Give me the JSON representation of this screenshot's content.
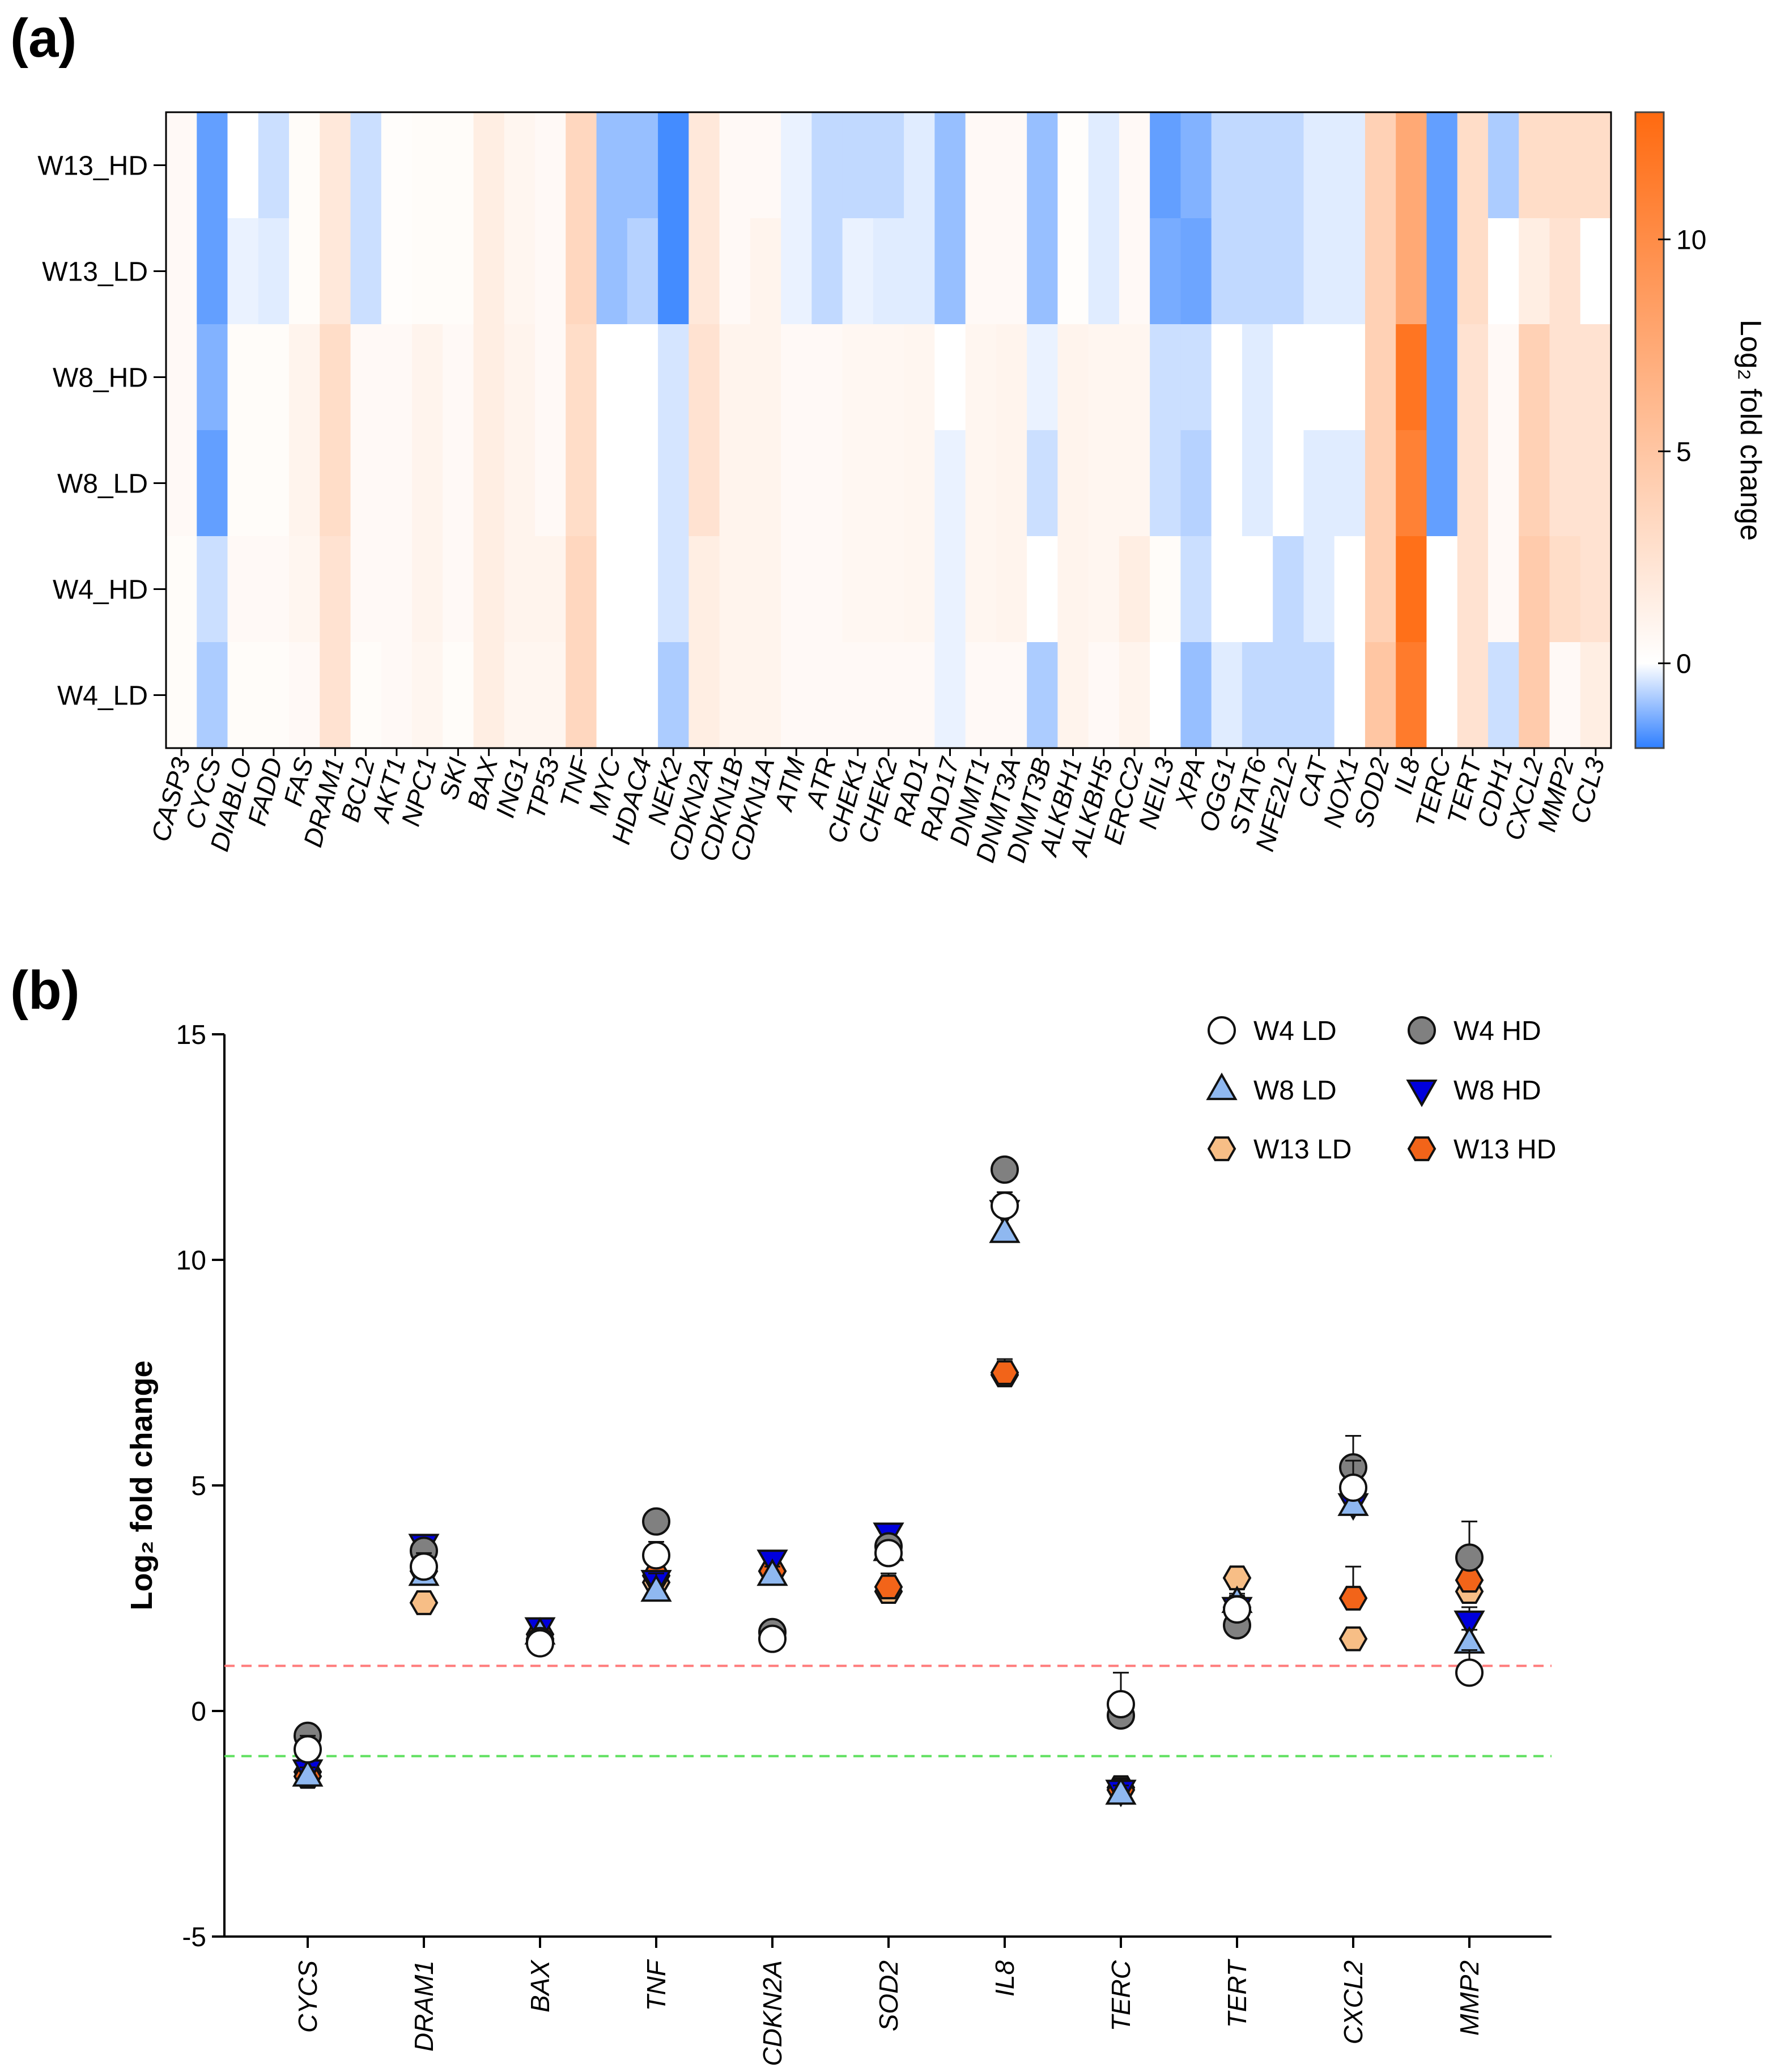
{
  "panel_a_label": "(a)",
  "panel_b_label": "(b)",
  "colors": {
    "low": "#2f7fff",
    "mid": "#ffffff",
    "high": "#ff6a10",
    "hd_grey": "#808080",
    "w8_ld": "#8fb8f0",
    "w8_hd": "#0000dd",
    "w13_ld": "#f7be86",
    "w13_hd": "#f26419",
    "upper_threshold": "#ff7b7b",
    "lower_threshold": "#5fe05f"
  },
  "chart_data": [
    {
      "type": "heatmap",
      "title": "",
      "rows": [
        "W13_HD",
        "W13_LD",
        "W8_HD",
        "W8_LD",
        "W4_HD",
        "W4_LD"
      ],
      "columns": [
        "CASP3",
        "CYCS",
        "DIABLO",
        "FADD",
        "FAS",
        "DRAM1",
        "BCL2",
        "AKT1",
        "NPC1",
        "SKI",
        "BAX",
        "ING1",
        "TP53",
        "TNF",
        "MYC",
        "HDAC4",
        "NEK2",
        "CDKN2A",
        "CDKN1B",
        "CDKN1A",
        "ATM",
        "ATR",
        "CHEK1",
        "CHEK2",
        "RAD1",
        "RAD17",
        "DNMT1",
        "DNMT3A",
        "DNMT3B",
        "ALKBH1",
        "ALKBH5",
        "ERCC2",
        "NEIL3",
        "XPA",
        "OGG1",
        "STAT6",
        "NFE2L2",
        "CAT",
        "NOX1",
        "SOD2",
        "IL8",
        "TERC",
        "TERT",
        "CDH1",
        "CXCL2",
        "MMP2",
        "CCL3"
      ],
      "values": [
        [
          0.5,
          -1.5,
          0.0,
          -0.5,
          0.3,
          2.0,
          -0.5,
          0.2,
          0.3,
          0.3,
          1.5,
          0.8,
          0.5,
          3.5,
          -1.0,
          -1.0,
          -1.8,
          2.0,
          0.5,
          0.5,
          -0.2,
          -0.6,
          -0.6,
          -0.6,
          -0.3,
          -1.0,
          0.5,
          0.5,
          -1.0,
          0.2,
          -0.3,
          0.5,
          -1.5,
          -1.2,
          -0.6,
          -0.6,
          -0.6,
          -0.3,
          -0.3,
          4.0,
          7.5,
          -1.5,
          3.0,
          -0.8,
          3.0,
          3.0,
          3.0
        ],
        [
          0.5,
          -1.5,
          -0.2,
          -0.3,
          0.3,
          2.0,
          -0.5,
          0.2,
          0.3,
          0.3,
          1.5,
          0.8,
          0.5,
          3.5,
          -1.0,
          -0.7,
          -1.8,
          2.0,
          0.5,
          1.0,
          -0.2,
          -0.6,
          -0.2,
          -0.3,
          -0.3,
          -1.0,
          0.5,
          0.5,
          -1.0,
          0.2,
          -0.3,
          0.5,
          -1.3,
          -1.4,
          -0.6,
          -0.6,
          -0.6,
          -0.3,
          -0.3,
          4.0,
          7.5,
          -1.5,
          3.0,
          0.0,
          1.5,
          2.5,
          0.0
        ],
        [
          0.5,
          -1.2,
          0.3,
          0.3,
          1.0,
          3.0,
          0.5,
          0.5,
          1.0,
          0.5,
          1.5,
          1.0,
          0.5,
          3.0,
          0.0,
          0.0,
          -0.4,
          2.5,
          1.0,
          1.0,
          0.5,
          0.5,
          0.7,
          0.7,
          0.8,
          0.0,
          0.8,
          1.0,
          -0.2,
          1.0,
          0.8,
          0.8,
          -0.5,
          -0.5,
          0.0,
          -0.3,
          0.0,
          0.0,
          0.0,
          4.0,
          12.0,
          -1.5,
          2.5,
          0.5,
          4.0,
          2.5,
          2.5
        ],
        [
          0.5,
          -1.5,
          0.3,
          0.3,
          1.0,
          3.0,
          0.5,
          0.5,
          1.0,
          0.5,
          1.5,
          1.0,
          0.5,
          3.0,
          0.0,
          0.0,
          -0.4,
          2.5,
          1.0,
          1.0,
          0.5,
          0.5,
          0.7,
          0.7,
          0.8,
          -0.2,
          0.8,
          1.0,
          -0.5,
          1.0,
          0.8,
          0.8,
          -0.5,
          -0.7,
          0.0,
          -0.3,
          0.0,
          -0.3,
          -0.3,
          4.0,
          11.0,
          -1.5,
          2.5,
          0.5,
          4.0,
          2.5,
          2.5
        ],
        [
          0.3,
          -0.5,
          0.5,
          0.5,
          0.8,
          2.5,
          0.5,
          0.5,
          1.0,
          0.5,
          1.5,
          1.0,
          1.0,
          3.5,
          0.0,
          0.0,
          -0.4,
          1.5,
          1.0,
          1.0,
          0.5,
          0.5,
          0.7,
          0.7,
          0.8,
          -0.2,
          0.8,
          1.0,
          0.0,
          1.0,
          0.8,
          1.5,
          0.3,
          -0.5,
          0.0,
          0.0,
          -0.6,
          -0.3,
          0.0,
          4.0,
          12.5,
          0.0,
          2.5,
          0.5,
          4.5,
          3.0,
          2.5
        ],
        [
          0.3,
          -0.8,
          0.3,
          0.3,
          0.5,
          2.5,
          0.3,
          0.5,
          0.8,
          0.3,
          1.5,
          0.8,
          0.8,
          3.5,
          0.0,
          0.0,
          -0.8,
          1.5,
          1.0,
          1.0,
          0.5,
          0.5,
          0.5,
          0.5,
          0.5,
          -0.2,
          0.5,
          0.5,
          -0.8,
          1.0,
          0.5,
          1.0,
          0.0,
          -1.0,
          -0.3,
          -0.6,
          -0.6,
          -0.6,
          0.0,
          5.0,
          11.5,
          0.0,
          2.5,
          -0.5,
          4.5,
          0.5,
          1.5
        ]
      ],
      "colorbar": {
        "title": "Log₂ fold change",
        "range": [
          -2,
          13
        ],
        "ticks": [
          0,
          5,
          10
        ],
        "tick_labels": [
          "0",
          "5",
          "10"
        ]
      }
    },
    {
      "type": "scatter",
      "title": "",
      "xlabel": "",
      "ylabel": "Log₂ fold change",
      "ylim": [
        -5,
        15
      ],
      "yticks": [
        -5,
        0,
        5,
        10,
        15
      ],
      "ytick_labels": [
        "-5",
        "0",
        "5",
        "10",
        "15"
      ],
      "categories": [
        "CYCS",
        "DRAM1",
        "BAX",
        "TNF",
        "CDKN2A",
        "SOD2",
        "IL8",
        "TERC",
        "TERT",
        "CXCL2",
        "MMP2"
      ],
      "reference_lines": [
        1,
        -1
      ],
      "series": [
        {
          "name": "W4 LD",
          "marker": "circle",
          "fill": "#ffffff",
          "values": [
            -0.85,
            3.2,
            1.5,
            3.45,
            1.6,
            3.5,
            11.2,
            0.15,
            2.25,
            4.95,
            0.85
          ],
          "errors": [
            0.3,
            0.3,
            0.1,
            0.3,
            0.1,
            0.2,
            0.3,
            0.7,
            0.3,
            0.6,
            0.5
          ]
        },
        {
          "name": "W4 HD",
          "marker": "circle",
          "fill": "#808080",
          "values": [
            -0.55,
            3.55,
            1.55,
            4.2,
            1.75,
            3.65,
            12.0,
            -0.1,
            1.9,
            5.4,
            3.4
          ],
          "errors": [
            0.2,
            0.2,
            0.1,
            0.2,
            0.1,
            0.2,
            0.2,
            0.3,
            0.3,
            0.7,
            0.8
          ]
        },
        {
          "name": "W8 LD",
          "marker": "triangle",
          "fill": "#8fb8f0",
          "values": [
            -1.45,
            3.0,
            1.7,
            2.65,
            3.0,
            3.55,
            10.6,
            -1.85,
            2.4,
            4.55,
            1.5
          ],
          "errors": [
            0.2,
            0.2,
            0.1,
            0.4,
            0.2,
            0.2,
            0.5,
            0.2,
            0.3,
            0.4,
            0.3
          ]
        },
        {
          "name": "W8 HD",
          "marker": "invtriangle",
          "fill": "#0000dd",
          "values": [
            -1.3,
            3.7,
            1.85,
            2.9,
            3.35,
            3.95,
            11.1,
            -1.75,
            2.3,
            4.6,
            2.0
          ],
          "errors": [
            0.2,
            0.2,
            0.1,
            0.2,
            0.2,
            0.2,
            0.3,
            0.2,
            0.3,
            0.4,
            0.3
          ]
        },
        {
          "name": "W13 LD",
          "marker": "hexagon",
          "fill": "#f7be86",
          "values": [
            -1.35,
            2.4,
            1.6,
            2.85,
            3.1,
            2.65,
            7.45,
            -1.7,
            2.95,
            1.6,
            2.65
          ],
          "errors": [
            0.2,
            0.2,
            0.1,
            0.3,
            0.2,
            0.3,
            0.3,
            0.2,
            0.2,
            0.2,
            0.3
          ]
        },
        {
          "name": "W13 HD",
          "marker": "hexagon",
          "fill": "#f26419",
          "values": [
            -1.45,
            3.1,
            1.7,
            3.0,
            3.1,
            2.75,
            7.5,
            -1.75,
            2.3,
            2.5,
            2.9
          ],
          "errors": [
            0.2,
            0.2,
            0.1,
            0.3,
            0.2,
            0.3,
            0.3,
            0.2,
            0.2,
            0.7,
            0.3
          ]
        }
      ],
      "legend": {
        "position": "top-right",
        "entries": [
          "W4 LD",
          "W4 HD",
          "W8 LD",
          "W8 HD",
          "W13 LD",
          "W13 HD"
        ]
      }
    }
  ]
}
